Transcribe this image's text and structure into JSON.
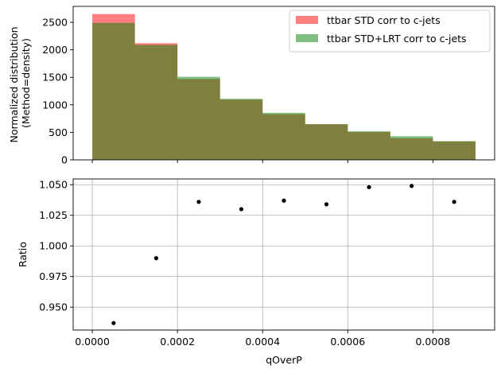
{
  "chart_data": [
    {
      "type": "bar",
      "kind": "overlaid-histogram",
      "bin_edges": [
        0.0,
        0.0001,
        0.0002,
        0.0003,
        0.0004,
        0.0005,
        0.0006,
        0.0007,
        0.0008,
        0.0009
      ],
      "series": [
        {
          "name": "ttbar STD corr to c-jets",
          "color": "#ff0000",
          "alpha": 0.5,
          "values": [
            2650,
            2120,
            1470,
            1095,
            830,
            645,
            505,
            395,
            335
          ]
        },
        {
          "name": "ttbar STD+LRT corr to c-jets",
          "color": "#008000",
          "alpha": 0.5,
          "values": [
            2490,
            2090,
            1510,
            1110,
            855,
            650,
            520,
            430,
            340
          ]
        }
      ],
      "ylabel_lines": [
        "Normalized distribution",
        "(Method=density)"
      ],
      "xlim": [
        -4.5e-05,
        0.000945
      ],
      "ylim": [
        0,
        2790
      ],
      "yticks": [
        0,
        500,
        1000,
        1500,
        2000,
        2500
      ],
      "ytick_labels": [
        "0",
        "500",
        "1000",
        "1500",
        "2000",
        "2500"
      ],
      "xticks": [
        0.0,
        0.0002,
        0.0004,
        0.0006,
        0.0008
      ],
      "show_xtick_labels": false,
      "grid": false,
      "legend_placement": "top-right"
    },
    {
      "type": "scatter",
      "x": [
        5e-05,
        0.00015,
        0.00025,
        0.00035,
        0.00045,
        0.00055,
        0.00065,
        0.00075,
        0.00085
      ],
      "y": [
        0.937,
        0.99,
        1.036,
        1.03,
        1.037,
        1.034,
        1.048,
        1.049,
        1.036
      ],
      "color": "#000000",
      "xlabel": "qOverP",
      "ylabel": "Ratio",
      "xlim": [
        -4.5e-05,
        0.000945
      ],
      "ylim": [
        0.9313,
        1.0547
      ],
      "xticks": [
        0.0,
        0.0002,
        0.0004,
        0.0006,
        0.0008
      ],
      "xtick_labels": [
        "0.0000",
        "0.0002",
        "0.0004",
        "0.0006",
        "0.0008"
      ],
      "yticks": [
        0.95,
        0.975,
        1.0,
        1.025,
        1.05
      ],
      "ytick_labels": [
        "0.950",
        "0.975",
        "1.000",
        "1.025",
        "1.050"
      ],
      "grid": true
    }
  ]
}
